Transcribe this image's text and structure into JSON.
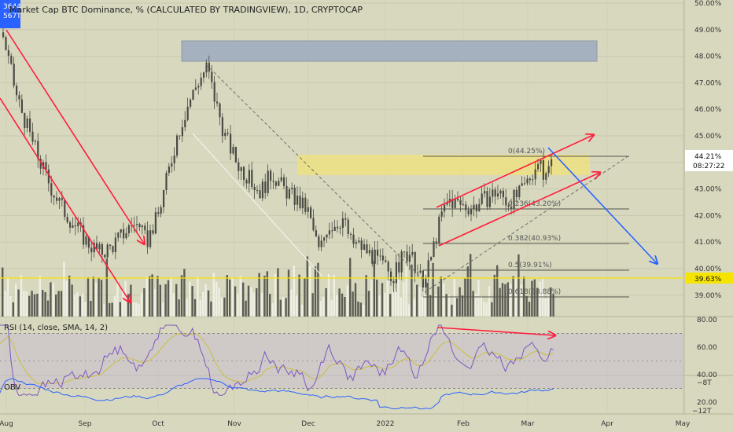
{
  "header": {
    "title": "Market Cap BTC Dominance, % (CALCULATED BY TRADINGVIEW), 1D, CRYPTOCAP",
    "badge_top": "3644",
    "badge_bottom": "567T"
  },
  "colors": {
    "background": "#d8d8bf",
    "candles": "#4a4a44",
    "volume_dark": "#5c5c55",
    "volume_light": "#efefe6",
    "red_channel": "#ff1f3d",
    "blue_arrow": "#2962ff",
    "yellow_line": "#f5e400",
    "zone_fill": "#f0e27a",
    "box_fill": "#a6b1bf",
    "rsi_line": "#7e57c2",
    "rsi_ma": "#c9bf3c",
    "obv_line": "#2962ff",
    "last_price_bg": "#ffffff"
  },
  "price_axis": {
    "ticks": [
      "50.00%",
      "49.00%",
      "48.00%",
      "47.00%",
      "46.00%",
      "45.00%",
      "43.00%",
      "42.00%",
      "41.00%",
      "40.00%",
      "39.00%"
    ],
    "last_price": "44.21%",
    "countdown": "08:27:22",
    "line_price": "39.63%"
  },
  "fib_labels": [
    "0(44.25%)",
    "0.236(43.20%)",
    "0.382(40.93%)",
    "0.5(39.91%)",
    "0.618(38.88%)"
  ],
  "rsi": {
    "label": "RSI (14, close, SMA, 14, 2)",
    "ticks": [
      "80.00",
      "60.00",
      "40.00",
      "20.00"
    ]
  },
  "obv": {
    "label": "OBV",
    "ticks": [
      "−8T",
      "−12T"
    ]
  },
  "time_axis": [
    "Aug",
    "Sep",
    "Oct",
    "Nov",
    "Dec",
    "2022",
    "Feb",
    "Mar",
    "Apr",
    "May"
  ],
  "chart_data": {
    "type": "candlestick",
    "title": "Market Cap BTC Dominance, % (CALCULATED BY TRADINGVIEW), 1D, CRYPTOCAP",
    "x_range": [
      "Aug",
      "May"
    ],
    "ylim": [
      38.5,
      50
    ],
    "notes": "Daily candles of BTC dominance; approximate closes sampled along the path",
    "path": [
      {
        "x": "Aug",
        "y": 49.2
      },
      {
        "x": "Sep",
        "y": 42.2
      },
      {
        "x": "Sep",
        "y": 40.6
      },
      {
        "x": "Oct",
        "y": 41.5
      },
      {
        "x": "Oct",
        "y": 45.2
      },
      {
        "x": "Oct",
        "y": 47.7
      },
      {
        "x": "Nov",
        "y": 43.0
      },
      {
        "x": "Dec",
        "y": 40.2
      },
      {
        "x": "Dec",
        "y": 42.4
      },
      {
        "x": "2022",
        "y": 39.2
      },
      {
        "x": "2022",
        "y": 40.4
      },
      {
        "x": "Feb",
        "y": 42.5
      },
      {
        "x": "Mar",
        "y": 43.0
      },
      {
        "x": "Mar",
        "y": 44.21
      }
    ]
  }
}
